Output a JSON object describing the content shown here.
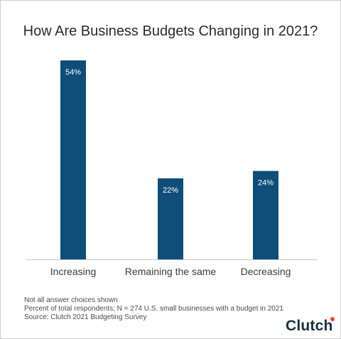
{
  "chart_data": {
    "type": "bar",
    "title": "How Are Business Budgets Changing in 2021?",
    "categories": [
      "Increasing",
      "Remaining the same",
      "Decreasing"
    ],
    "values": [
      54,
      22,
      24
    ],
    "value_labels": [
      "54%",
      "22%",
      "24%"
    ],
    "ylim": [
      0,
      54
    ],
    "grid": false,
    "bar_color": "#0e4e78",
    "label_color": "#ffffff",
    "baseline_color": "#c8c8c8"
  },
  "notes": [
    "Not all answer choices shown",
    "Percent of total respondents; N = 274 U.S. small businesses with a budget in 2021",
    "Source: Clutch 2021 Budgeting Survey"
  ],
  "logo": {
    "text": "Clutch",
    "dot_color": "#ef4335"
  }
}
